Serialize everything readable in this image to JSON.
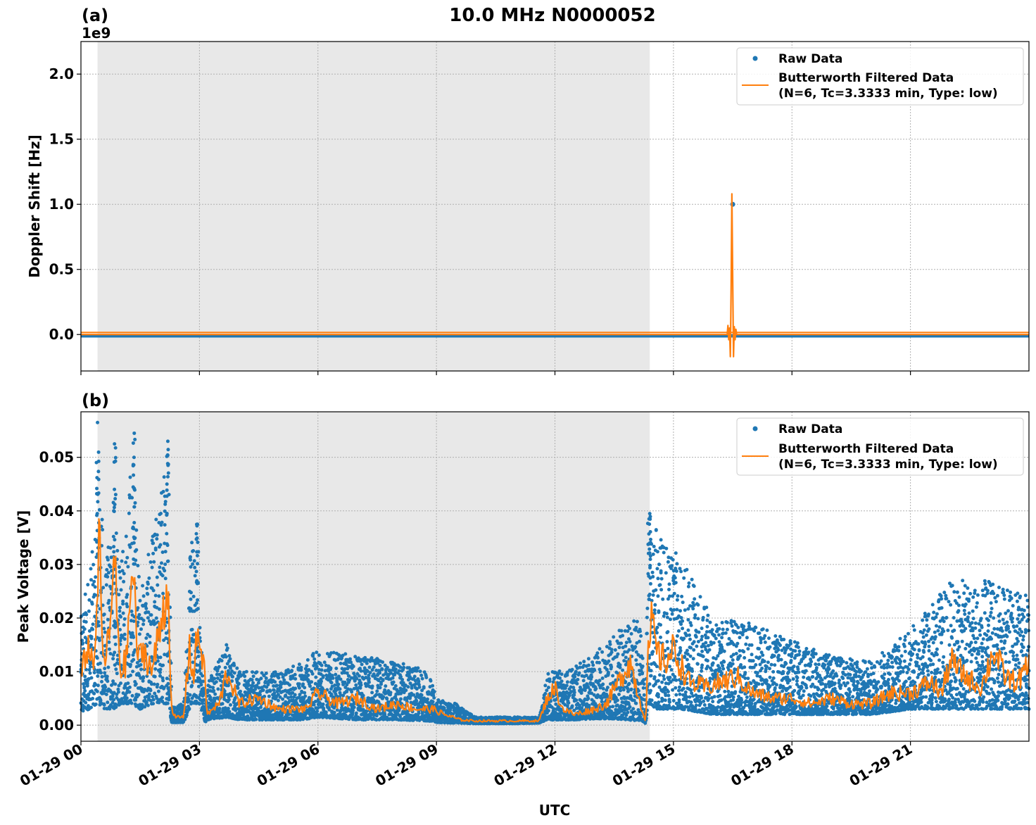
{
  "figure": {
    "title": "10.0 MHz N0000052",
    "xlabel": "UTC"
  },
  "chart_data": [
    {
      "panel": "(a)",
      "type": "line",
      "ylabel": "Doppler Shift [Hz]",
      "y_offset_label": "1e9",
      "xlim_hours": [
        0,
        24
      ],
      "ylim": [
        -0.28,
        2.25
      ],
      "yticks": [
        0.0,
        0.5,
        1.0,
        1.5,
        2.0
      ],
      "ytick_labels": [
        "0.0",
        "0.5",
        "1.0",
        "1.5",
        "2.0"
      ],
      "grid": true,
      "legend_position": "top-right",
      "shaded_region_hours": [
        0.42,
        14.4
      ],
      "series": [
        {
          "name": "Raw Data",
          "style": "points",
          "color": "#1f77b4",
          "x_hours": [
            0,
            16.48,
            16.5,
            16.52,
            24
          ],
          "values": [
            -0.01,
            -0.01,
            1.0,
            -0.01,
            -0.01
          ]
        },
        {
          "name": "Butterworth Filtered Data\n(N=6, Tc=3.3333 min, Type: low)",
          "style": "line",
          "color": "#ff7f0e",
          "x_hours": [
            0,
            16.36,
            16.38,
            16.4,
            16.42,
            16.44,
            16.46,
            16.48,
            16.5,
            16.52,
            16.54,
            16.56,
            16.58,
            16.6,
            24
          ],
          "values": [
            0.0,
            0.0,
            0.07,
            -0.04,
            0.05,
            -0.17,
            0.35,
            1.08,
            0.4,
            -0.17,
            0.06,
            -0.04,
            0.04,
            0.0,
            0.0
          ]
        }
      ]
    },
    {
      "panel": "(b)",
      "type": "scatter",
      "ylabel": "Peak Voltage [V]",
      "xlim_hours": [
        0,
        24
      ],
      "ylim": [
        -0.003,
        0.0585
      ],
      "yticks": [
        0.0,
        0.01,
        0.02,
        0.03,
        0.04,
        0.05
      ],
      "ytick_labels": [
        "0.00",
        "0.01",
        "0.02",
        "0.03",
        "0.04",
        "0.05"
      ],
      "xticks_hours": [
        0,
        3,
        6,
        9,
        12,
        15,
        18,
        21
      ],
      "xtick_labels": [
        "01-29 00",
        "01-29 03",
        "01-29 06",
        "01-29 09",
        "01-29 12",
        "01-29 15",
        "01-29 18",
        "01-29 21"
      ],
      "grid": true,
      "legend_position": "top-right",
      "shaded_region_hours": [
        0.42,
        14.4
      ],
      "series": [
        {
          "name": "Raw Data",
          "style": "points",
          "color": "#1f77b4",
          "envelope": {
            "x_hours": [
              0,
              0.2,
              0.4,
              0.45,
              0.6,
              0.85,
              1.0,
              1.3,
              1.5,
              1.8,
              2.2,
              2.3,
              2.6,
              2.8,
              3.0,
              3.15,
              3.2,
              3.7,
              4.0,
              5.0,
              5.6,
              6.0,
              7.0,
              8.0,
              8.8,
              9.0,
              9.5,
              10.0,
              11.0,
              11.6,
              11.8,
              12.0,
              12.5,
              13.0,
              13.4,
              13.8,
              14.2,
              14.3,
              14.35,
              14.6,
              15.2,
              16.0,
              17.0,
              18.0,
              19.0,
              20.0,
              21.0,
              22.0,
              23.0,
              24.0
            ],
            "low": [
              0.002,
              0.003,
              0.004,
              0.004,
              0.003,
              0.003,
              0.004,
              0.004,
              0.003,
              0.004,
              0.004,
              0.0005,
              0.0005,
              0.004,
              0.004,
              0.0005,
              0.001,
              0.0015,
              0.001,
              0.001,
              0.001,
              0.0015,
              0.001,
              0.001,
              0.0008,
              0.0005,
              0.0004,
              0.0003,
              0.0003,
              0.0004,
              0.001,
              0.001,
              0.001,
              0.0012,
              0.0012,
              0.001,
              0.0008,
              0.0003,
              0.004,
              0.003,
              0.003,
              0.002,
              0.002,
              0.002,
              0.002,
              0.002,
              0.003,
              0.003,
              0.003,
              0.003
            ],
            "high": [
              0.02,
              0.03,
              0.036,
              0.052,
              0.03,
              0.04,
              0.028,
              0.054,
              0.025,
              0.035,
              0.053,
              0.004,
              0.004,
              0.038,
              0.022,
              0.004,
              0.008,
              0.016,
              0.01,
              0.01,
              0.012,
              0.014,
              0.013,
              0.012,
              0.01,
              0.005,
              0.004,
              0.0015,
              0.0015,
              0.0015,
              0.01,
              0.01,
              0.011,
              0.013,
              0.017,
              0.019,
              0.02,
              0.001,
              0.04,
              0.036,
              0.031,
              0.02,
              0.019,
              0.016,
              0.013,
              0.012,
              0.018,
              0.027,
              0.027,
              0.024
            ]
          },
          "peaks": [
            {
              "x_hours": 0.42,
              "value": 0.0565
            },
            {
              "x_hours": 1.35,
              "value": 0.0545
            },
            {
              "x_hours": 0.85,
              "value": 0.0525
            },
            {
              "x_hours": 2.2,
              "value": 0.053
            },
            {
              "x_hours": 2.95,
              "value": 0.0375
            },
            {
              "x_hours": 14.4,
              "value": 0.0395
            }
          ]
        },
        {
          "name": "Butterworth Filtered Data\n(N=6, Tc=3.3333 min, Type: low)",
          "style": "line",
          "color": "#ff7f0e",
          "x_hours": [
            0,
            0.15,
            0.3,
            0.4,
            0.45,
            0.55,
            0.7,
            0.85,
            1.0,
            1.15,
            1.3,
            1.45,
            1.6,
            1.8,
            2.0,
            2.2,
            2.3,
            2.4,
            2.6,
            2.75,
            2.85,
            2.95,
            3.1,
            3.2,
            3.5,
            3.7,
            4.0,
            4.5,
            5.0,
            5.3,
            5.7,
            6.0,
            6.5,
            7.0,
            7.5,
            8.0,
            8.5,
            8.9,
            9.2,
            9.6,
            10.0,
            11.0,
            11.6,
            11.8,
            12.0,
            12.2,
            12.5,
            13.0,
            13.3,
            13.6,
            13.9,
            14.2,
            14.3,
            14.35,
            14.45,
            14.6,
            14.8,
            15.0,
            15.4,
            15.8,
            16.2,
            16.6,
            17.0,
            17.5,
            18.0,
            18.5,
            19.0,
            19.5,
            20.0,
            20.5,
            21.0,
            21.5,
            21.8,
            22.0,
            22.4,
            22.8,
            23.1,
            23.4,
            23.7,
            24.0
          ],
          "values": [
            0.008,
            0.015,
            0.012,
            0.018,
            0.038,
            0.012,
            0.015,
            0.03,
            0.01,
            0.012,
            0.03,
            0.012,
            0.014,
            0.01,
            0.018,
            0.027,
            0.002,
            0.0015,
            0.0015,
            0.015,
            0.008,
            0.018,
            0.012,
            0.002,
            0.004,
            0.01,
            0.004,
            0.005,
            0.003,
            0.003,
            0.003,
            0.006,
            0.004,
            0.005,
            0.003,
            0.004,
            0.003,
            0.003,
            0.002,
            0.001,
            0.0008,
            0.0008,
            0.0008,
            0.005,
            0.007,
            0.003,
            0.002,
            0.003,
            0.004,
            0.008,
            0.012,
            0.003,
            0.0008,
            0.012,
            0.019,
            0.013,
            0.012,
            0.014,
            0.008,
            0.007,
            0.008,
            0.009,
            0.006,
            0.005,
            0.005,
            0.004,
            0.005,
            0.004,
            0.004,
            0.006,
            0.006,
            0.008,
            0.006,
            0.012,
            0.009,
            0.007,
            0.014,
            0.009,
            0.008,
            0.011
          ]
        }
      ]
    }
  ],
  "legend": {
    "raw_label": "Raw Data",
    "filtered_label_line1": "Butterworth Filtered Data",
    "filtered_label_line2": "(N=6, Tc=3.3333 min, Type: low)"
  }
}
